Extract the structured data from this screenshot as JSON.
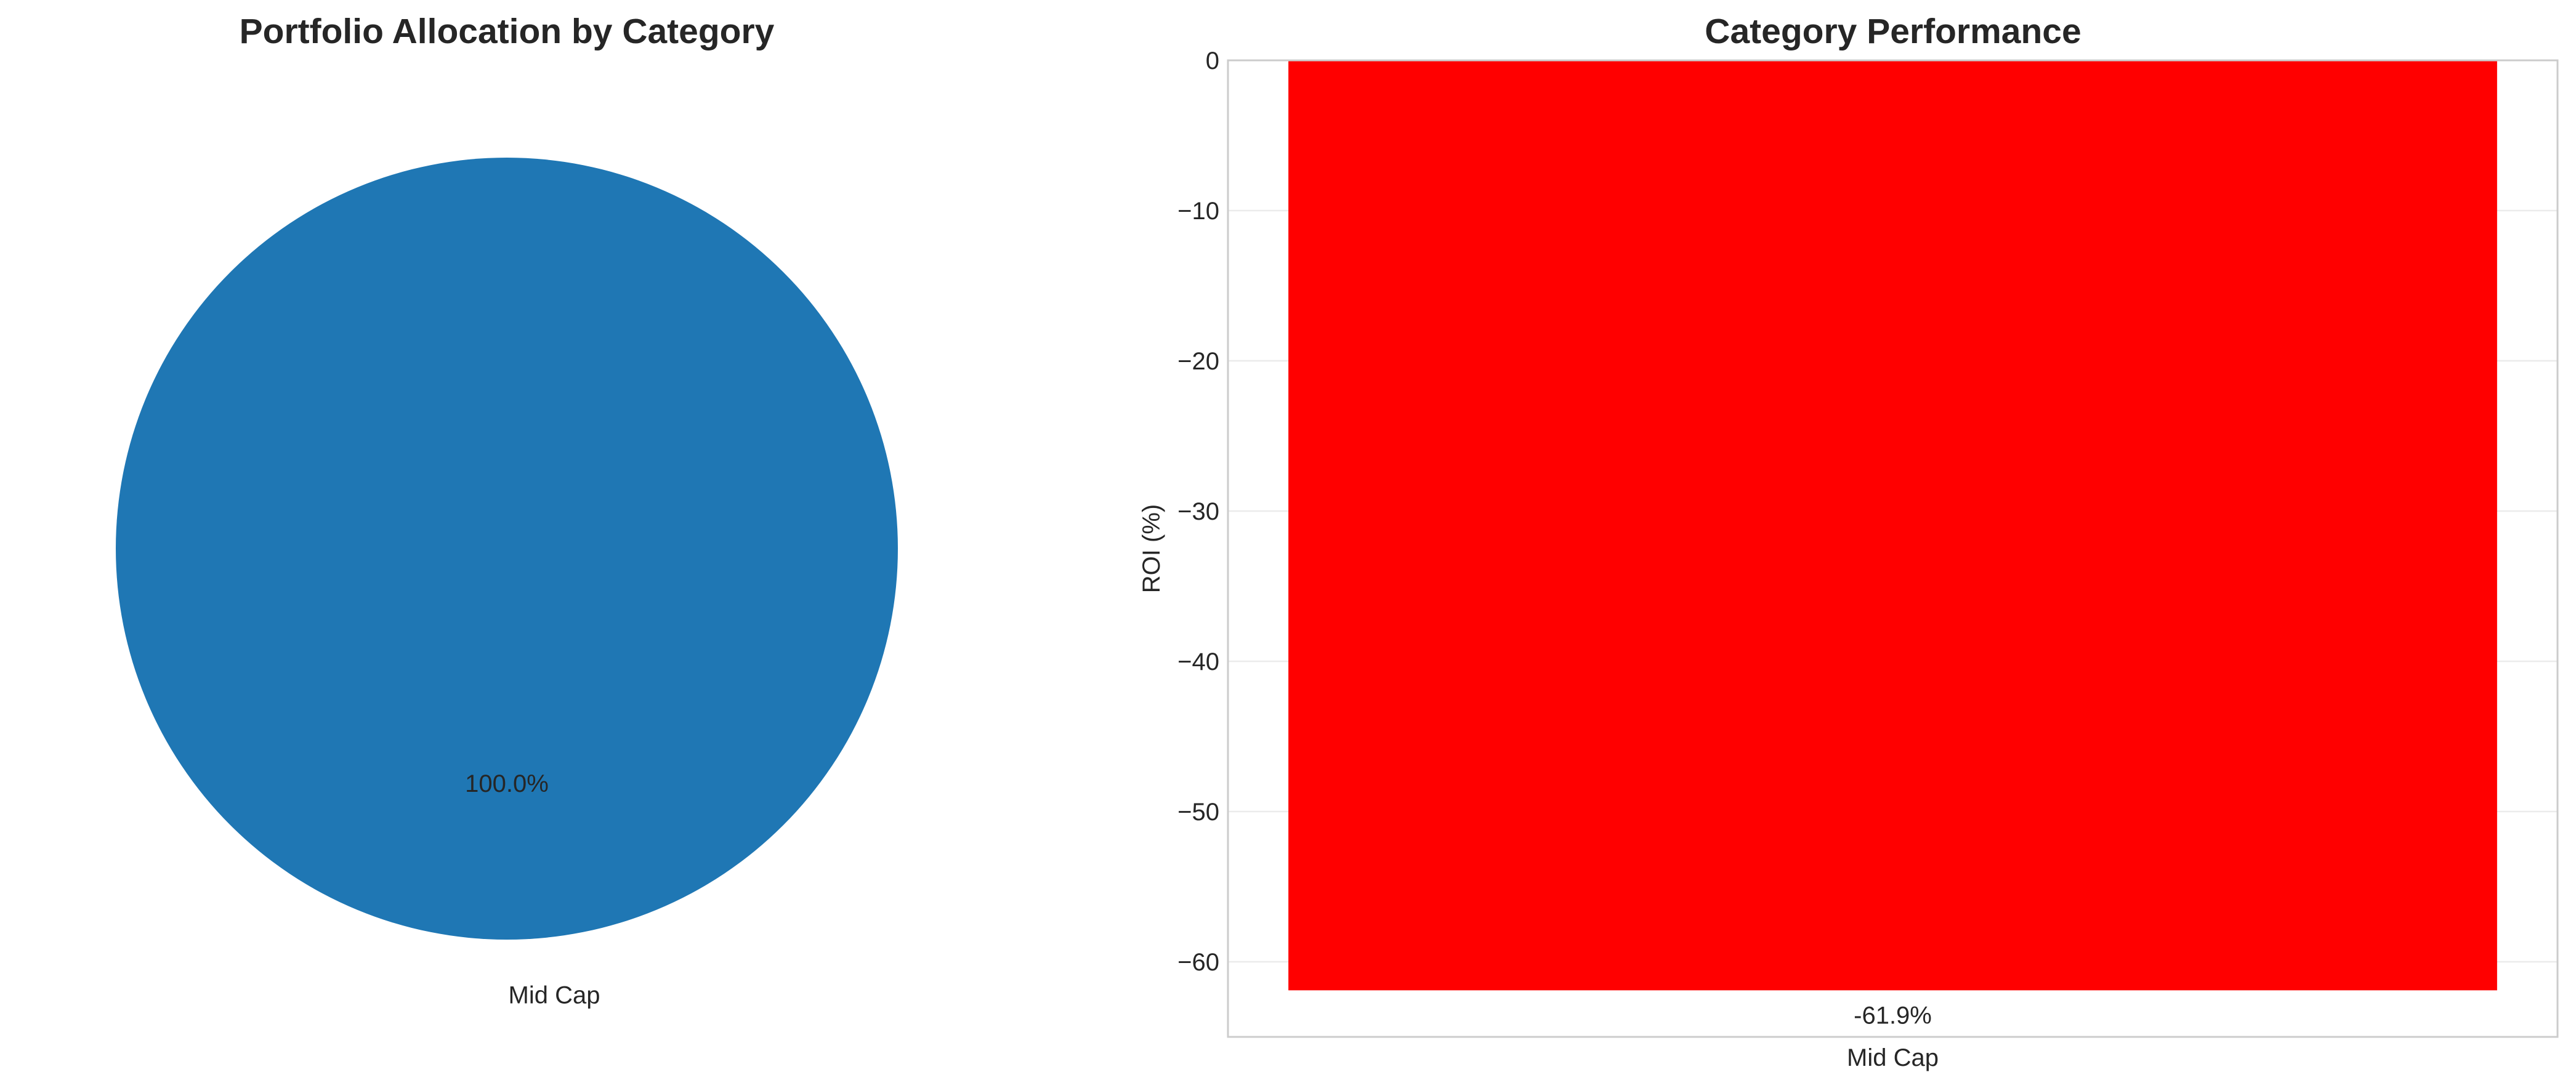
{
  "chart_data": [
    {
      "type": "pie",
      "title": "Portfolio Allocation by Category",
      "categories": [
        "Mid Cap"
      ],
      "values": [
        100.0
      ],
      "slice_labels": [
        "100.0%"
      ],
      "colors": [
        "#1f77b4"
      ]
    },
    {
      "type": "bar",
      "title": "Category Performance",
      "categories": [
        "Mid Cap"
      ],
      "values": [
        -61.9
      ],
      "data_labels": [
        "-61.9%"
      ],
      "xlabel": "",
      "ylabel": "ROI (%)",
      "ylim": [
        -65,
        0
      ],
      "yticks": [
        0,
        -10,
        -20,
        -30,
        -40,
        -50,
        -60
      ],
      "ytick_labels": [
        "0",
        "−10",
        "−20",
        "−30",
        "−40",
        "−50",
        "−60"
      ],
      "grid": true,
      "colors": [
        "#ff0000"
      ]
    }
  ]
}
